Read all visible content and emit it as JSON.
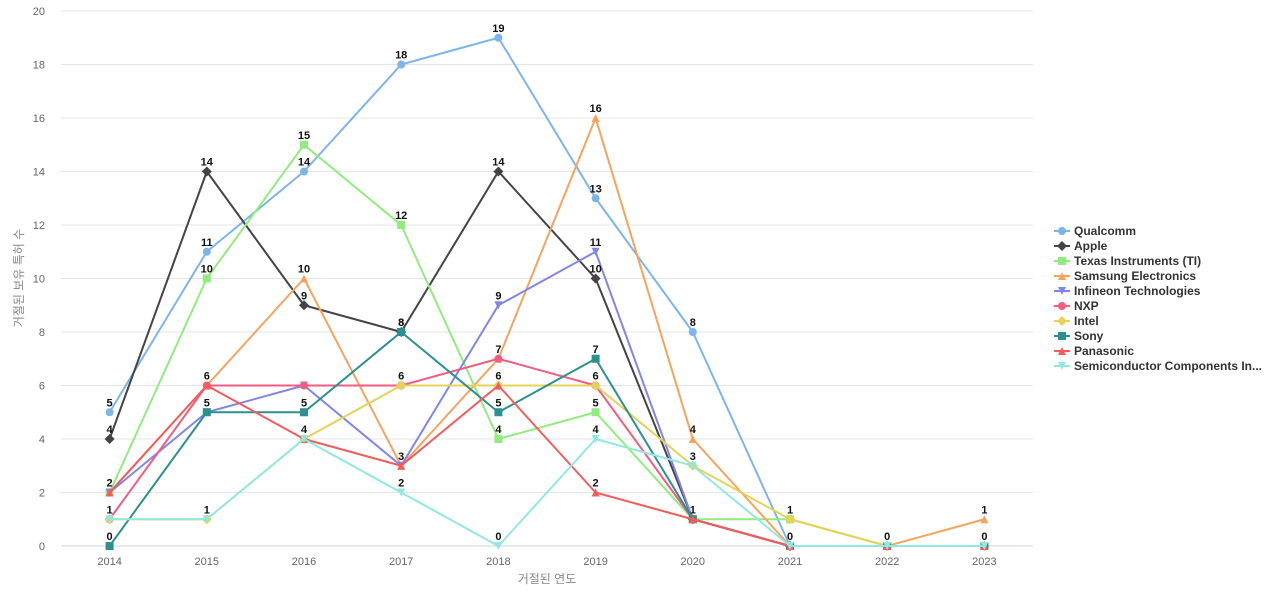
{
  "chart_data": {
    "type": "line",
    "xlabel": "거절된 연도",
    "ylabel": "거절된 보유 특허 수",
    "ylim": [
      0,
      20
    ],
    "yticks": [
      0,
      2,
      4,
      6,
      8,
      10,
      12,
      14,
      16,
      18,
      20
    ],
    "grid": true,
    "legend_position": "right",
    "categories": [
      "2014",
      "2015",
      "2016",
      "2017",
      "2018",
      "2019",
      "2020",
      "2021",
      "2022",
      "2023"
    ],
    "series": [
      {
        "name": "Qualcomm",
        "color": "#7cb5ec",
        "marker": "circle",
        "values": [
          5,
          11,
          14,
          18,
          19,
          13,
          8,
          0,
          0,
          0
        ],
        "labels": [
          5,
          11,
          14,
          18,
          19,
          13,
          8,
          null,
          null,
          null
        ]
      },
      {
        "name": "Apple",
        "color": "#434348",
        "marker": "diamond",
        "values": [
          4,
          14,
          9,
          8,
          14,
          10,
          1,
          0,
          0,
          0
        ],
        "labels": [
          4,
          14,
          9,
          8,
          14,
          10,
          null,
          null,
          null,
          null
        ]
      },
      {
        "name": "Texas Instruments (TI)",
        "color": "#90ed7d",
        "marker": "square",
        "values": [
          2,
          10,
          15,
          12,
          4,
          5,
          1,
          1,
          0,
          0
        ],
        "labels": [
          null,
          10,
          15,
          12,
          4,
          5,
          null,
          null,
          null,
          null
        ]
      },
      {
        "name": "Samsung Electronics",
        "color": "#f7a35c",
        "marker": "triangle",
        "values": [
          2,
          6,
          10,
          3,
          7,
          16,
          4,
          0,
          0,
          1
        ],
        "labels": [
          null,
          null,
          10,
          null,
          7,
          16,
          4,
          null,
          null,
          1
        ]
      },
      {
        "name": "Infineon Technologies",
        "color": "#8085e9",
        "marker": "triangle-down",
        "values": [
          2,
          5,
          6,
          3,
          9,
          11,
          1,
          0,
          0,
          0
        ],
        "labels": [
          null,
          null,
          null,
          null,
          9,
          11,
          null,
          null,
          null,
          null
        ]
      },
      {
        "name": "NXP",
        "color": "#f15c80",
        "marker": "circle",
        "values": [
          1,
          6,
          6,
          6,
          7,
          6,
          1,
          0,
          0,
          0
        ],
        "labels": [
          null,
          null,
          null,
          null,
          null,
          null,
          null,
          null,
          null,
          null
        ]
      },
      {
        "name": "Intel",
        "color": "#e4d354",
        "marker": "diamond",
        "values": [
          1,
          1,
          4,
          6,
          6,
          6,
          3,
          1,
          0,
          0
        ],
        "labels": [
          1,
          null,
          null,
          6,
          null,
          6,
          null,
          1,
          null,
          null
        ]
      },
      {
        "name": "Sony",
        "color": "#2b908f",
        "marker": "square",
        "values": [
          0,
          5,
          5,
          8,
          5,
          7,
          1,
          0,
          0,
          0
        ],
        "labels": [
          0,
          5,
          5,
          8,
          5,
          7,
          1,
          0,
          0,
          0
        ]
      },
      {
        "name": "Panasonic",
        "color": "#f45b5b",
        "marker": "triangle",
        "values": [
          2,
          6,
          4,
          3,
          6,
          2,
          1,
          0,
          0,
          0
        ],
        "labels": [
          2,
          6,
          4,
          3,
          6,
          2,
          null,
          null,
          null,
          null
        ]
      },
      {
        "name": "Semiconductor Components In...",
        "color": "#91e8e1",
        "marker": "triangle-down",
        "values": [
          1,
          1,
          4,
          2,
          0,
          4,
          3,
          0,
          0,
          0
        ],
        "labels": [
          null,
          1,
          null,
          2,
          0,
          4,
          3,
          null,
          null,
          null
        ]
      }
    ]
  }
}
